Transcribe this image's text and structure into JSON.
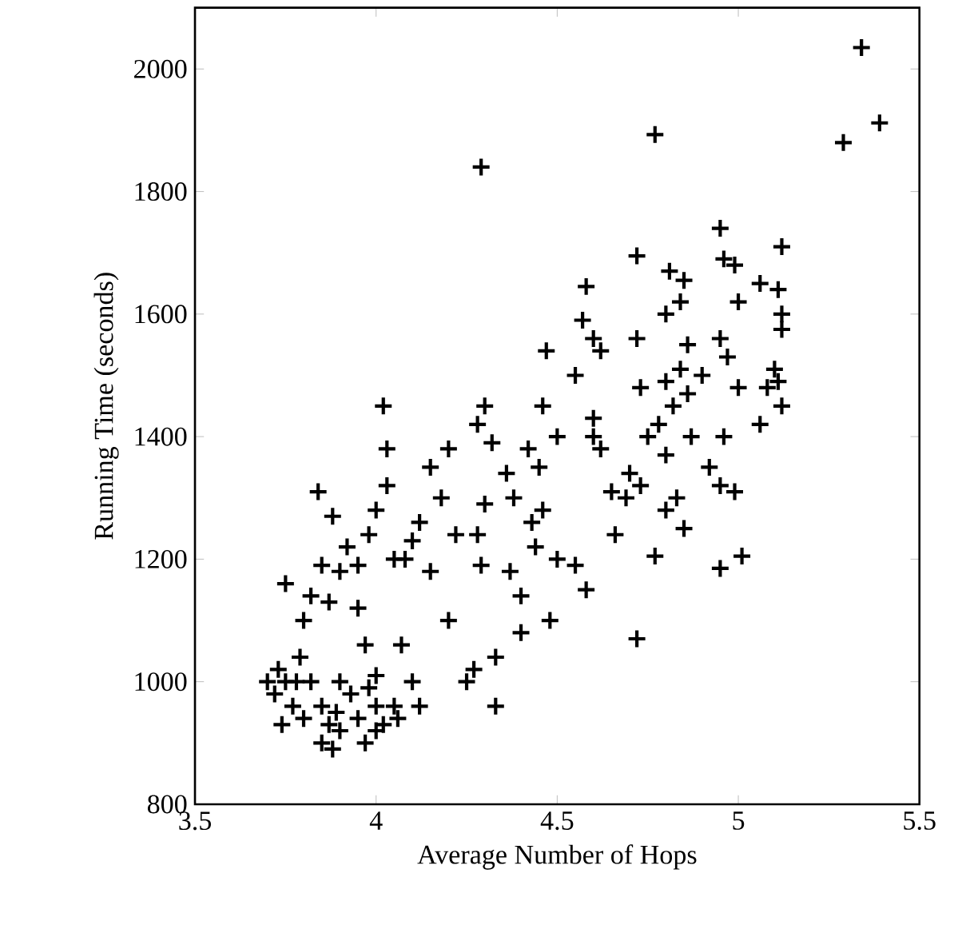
{
  "chart_data": {
    "type": "scatter",
    "xlabel": "Average Number of Hops",
    "ylabel": "Running Time (seconds)",
    "xlim": [
      3.5,
      5.5
    ],
    "ylim": [
      800,
      2100
    ],
    "xticks": [
      3.5,
      4,
      4.5,
      5,
      5.5
    ],
    "yticks": [
      800,
      1000,
      1200,
      1400,
      1600,
      1800,
      2000
    ],
    "marker": "cross",
    "color": "#000000",
    "x": [
      4.29,
      4.77,
      5.29,
      5.34,
      5.39,
      5.12,
      4.95,
      4.96,
      4.99,
      5.06,
      5.11,
      5.12,
      5.12,
      5.0,
      5.1,
      5.11,
      5.08,
      5.12,
      5.06,
      5.0,
      4.95,
      4.97,
      4.96,
      4.95,
      4.99,
      4.95,
      5.01,
      4.72,
      4.81,
      4.85,
      4.84,
      4.8,
      4.86,
      4.84,
      4.8,
      4.86,
      4.82,
      4.78,
      4.8,
      4.87,
      4.83,
      4.8,
      4.85,
      4.77,
      4.72,
      4.73,
      4.7,
      4.73,
      4.69,
      4.65,
      4.6,
      4.58,
      4.6,
      4.57,
      4.55,
      4.6,
      4.62,
      4.72,
      4.66,
      4.58,
      4.55,
      4.5,
      4.48,
      4.47,
      4.5,
      4.46,
      4.45,
      4.42,
      4.43,
      4.46,
      4.44,
      4.4,
      4.37,
      4.4,
      4.33,
      4.32,
      4.36,
      4.38,
      4.3,
      4.28,
      4.3,
      4.28,
      4.29,
      4.33,
      4.27,
      4.25,
      4.2,
      4.22,
      4.18,
      4.2,
      4.15,
      4.12,
      4.15,
      4.1,
      4.08,
      4.05,
      4.07,
      4.1,
      4.12,
      4.03,
      4.02,
      4.03,
      4.0,
      3.98,
      3.95,
      3.92,
      3.88,
      3.85,
      3.84,
      3.82,
      3.87,
      3.9,
      3.95,
      3.97,
      3.8,
      3.75,
      3.73,
      3.7,
      3.72,
      3.75,
      3.77,
      3.79,
      3.78,
      3.8,
      3.74,
      3.82,
      3.85,
      3.87,
      3.85,
      3.89,
      3.9,
      3.93,
      3.95,
      3.98,
      4.0,
      4.02,
      4.05,
      4.06,
      3.9,
      4.0,
      3.97,
      3.88,
      4.0,
      4.62,
      4.75,
      4.9,
      4.92
    ],
    "values": [
      1840,
      1893,
      1880,
      2035,
      1912,
      1710,
      1740,
      1690,
      1680,
      1650,
      1640,
      1600,
      1575,
      1620,
      1510,
      1490,
      1480,
      1450,
      1420,
      1480,
      1560,
      1530,
      1400,
      1320,
      1310,
      1185,
      1205,
      1695,
      1670,
      1655,
      1620,
      1600,
      1550,
      1510,
      1490,
      1470,
      1450,
      1420,
      1370,
      1400,
      1300,
      1280,
      1250,
      1205,
      1560,
      1480,
      1340,
      1320,
      1300,
      1310,
      1400,
      1645,
      1560,
      1590,
      1500,
      1430,
      1380,
      1070,
      1240,
      1150,
      1190,
      1200,
      1100,
      1540,
      1400,
      1450,
      1350,
      1380,
      1260,
      1280,
      1220,
      1140,
      1180,
      1080,
      960,
      1390,
      1340,
      1300,
      1450,
      1420,
      1290,
      1240,
      1190,
      1040,
      1020,
      1000,
      1100,
      1240,
      1300,
      1380,
      1350,
      1260,
      1180,
      1230,
      1200,
      1200,
      1060,
      1000,
      960,
      1380,
      1450,
      1320,
      1280,
      1240,
      1190,
      1220,
      1270,
      1190,
      1310,
      1140,
      1130,
      1180,
      1120,
      1060,
      1100,
      1160,
      1020,
      1000,
      980,
      1000,
      960,
      1040,
      1000,
      940,
      930,
      1000,
      960,
      930,
      900,
      950,
      920,
      980,
      940,
      990,
      960,
      930,
      960,
      940,
      1000,
      920,
      900,
      890,
      1010,
      1540,
      1400,
      1500,
      1350
    ]
  }
}
